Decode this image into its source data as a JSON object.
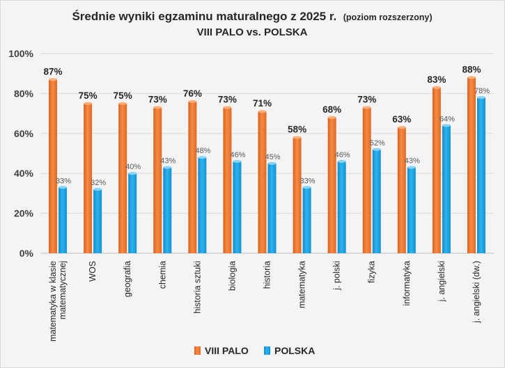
{
  "chart_data": {
    "type": "bar",
    "title": "Średnie wyniki egzaminu maturalnego z 2025 r.",
    "title_note": "(poziom rozszerzony)",
    "subtitle": "VIII PALO vs. POLSKA",
    "categories": [
      "matematyka w klasie matematycznej",
      "WOS",
      "geografia",
      "chemia",
      "historia sztuki",
      "biologia",
      "historia",
      "matematyka",
      "j. polski",
      "fizyka",
      "informatyka",
      "j. angielski",
      "j. angielski (dw.)"
    ],
    "series": [
      {
        "name": "VIII PALO",
        "color": "#ed7d31",
        "values": [
          87,
          75,
          75,
          73,
          76,
          73,
          71,
          58,
          68,
          73,
          63,
          83,
          88
        ],
        "labels": [
          "87%",
          "75%",
          "75%",
          "73%",
          "76%",
          "73%",
          "71%",
          "58%",
          "68%",
          "73%",
          "63%",
          "83%",
          "88%"
        ]
      },
      {
        "name": "POLSKA",
        "color": "#1ba1e2",
        "values": [
          33,
          32,
          40,
          43,
          48,
          46,
          45,
          33,
          46,
          52,
          43,
          64,
          78
        ],
        "labels": [
          "33%",
          "32%",
          "40%",
          "43%",
          "48%",
          "46%",
          "45%",
          "33%",
          "46%",
          "52%",
          "43%",
          "64%",
          "78%"
        ]
      }
    ],
    "yticks": [
      "0%",
      "20%",
      "40%",
      "60%",
      "80%",
      "100%"
    ],
    "ylim": [
      0,
      100
    ],
    "grid": true,
    "legend": "bottom-center"
  }
}
